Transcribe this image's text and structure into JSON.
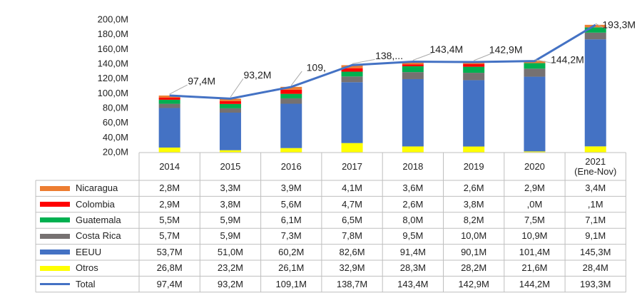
{
  "chart_data": {
    "type": "bar",
    "categories": [
      "2014",
      "2015",
      "2016",
      "2017",
      "2018",
      "2019",
      "2020",
      "2021\n(Ene-Nov)"
    ],
    "ylim": [
      20,
      200
    ],
    "yticks": [
      {
        "value": 20,
        "label": "20,0M"
      },
      {
        "value": 40,
        "label": "40,0M"
      },
      {
        "value": 60,
        "label": "60,0M"
      },
      {
        "value": 80,
        "label": "80,0M"
      },
      {
        "value": 100,
        "label": "100,0M"
      },
      {
        "value": 120,
        "label": "120,0M"
      },
      {
        "value": 140,
        "label": "140,0M"
      },
      {
        "value": 160,
        "label": "160,0M"
      },
      {
        "value": 180,
        "label": "180,0M"
      },
      {
        "value": 200,
        "label": "200,0M"
      }
    ],
    "series": [
      {
        "name": "Nicaragua",
        "color": "#ed7d31",
        "values": [
          2.8,
          3.3,
          3.9,
          4.1,
          3.6,
          2.6,
          2.9,
          3.4
        ],
        "value_labels": [
          "2,8M",
          "3,3M",
          "3,9M",
          "4,1M",
          "3,6M",
          "2,6M",
          "2,9M",
          "3,4M"
        ]
      },
      {
        "name": "Colombia",
        "color": "#ff0000",
        "values": [
          2.9,
          3.8,
          5.6,
          4.7,
          2.6,
          3.8,
          0,
          0.1
        ],
        "value_labels": [
          "2,9M",
          "3,8M",
          "5,6M",
          "4,7M",
          "2,6M",
          "3,8M",
          ",0M",
          ",1M"
        ]
      },
      {
        "name": "Guatemala",
        "color": "#00b050",
        "values": [
          5.5,
          5.9,
          6.1,
          6.5,
          8.0,
          8.2,
          7.5,
          7.1
        ],
        "value_labels": [
          "5,5M",
          "5,9M",
          "6,1M",
          "6,5M",
          "8,0M",
          "8,2M",
          "7,5M",
          "7,1M"
        ]
      },
      {
        "name": "Costa Rica",
        "color": "#767171",
        "values": [
          5.7,
          5.9,
          7.3,
          7.8,
          9.5,
          10.0,
          10.9,
          9.1
        ],
        "value_labels": [
          "5,7M",
          "5,9M",
          "7,3M",
          "7,8M",
          "9,5M",
          "10,0M",
          "10,9M",
          "9,1M"
        ]
      },
      {
        "name": "EEUU",
        "color": "#4472c4",
        "values": [
          53.7,
          51.0,
          60.2,
          82.6,
          91.4,
          90.1,
          101.4,
          145.3
        ],
        "value_labels": [
          "53,7M",
          "51,0M",
          "60,2M",
          "82,6M",
          "91,4M",
          "90,1M",
          "101,4M",
          "145,3M"
        ]
      },
      {
        "name": "Otros",
        "color": "#ffff00",
        "values": [
          26.8,
          23.2,
          26.1,
          32.9,
          28.3,
          28.2,
          21.6,
          28.4
        ],
        "value_labels": [
          "26,8M",
          "23,2M",
          "26,1M",
          "32,9M",
          "28,3M",
          "28,2M",
          "21,6M",
          "28,4M"
        ]
      },
      {
        "name": "Total",
        "color": "#4472c4",
        "type": "line",
        "values": [
          97.4,
          93.2,
          109.1,
          138.7,
          143.4,
          142.9,
          144.2,
          193.3
        ],
        "value_labels": [
          "97,4M",
          "93,2M",
          "109,1M",
          "138,7M",
          "143,4M",
          "142,9M",
          "144,2M",
          "193,3M"
        ],
        "point_labels": [
          "97,4M",
          "93,2M",
          "109,",
          "138,...",
          "143,4M",
          "142,9M",
          "144,2M",
          "193,3M"
        ]
      }
    ]
  }
}
